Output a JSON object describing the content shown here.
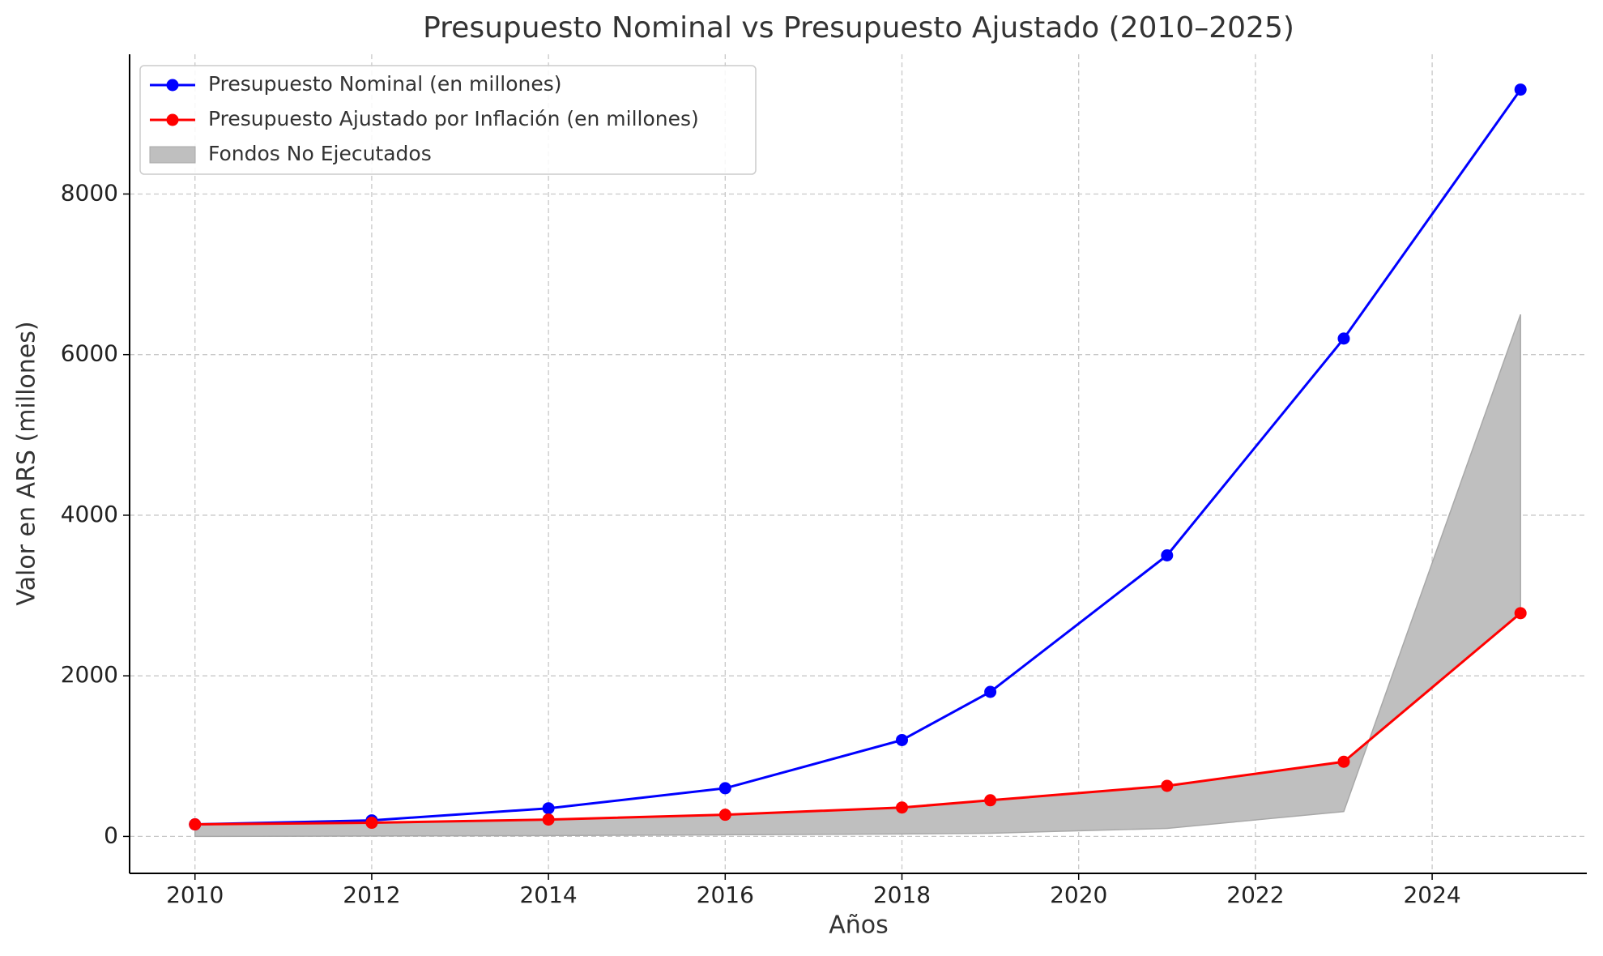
{
  "chart_data": {
    "type": "line",
    "title": "Presupuesto Nominal vs Presupuesto Ajustado (2010–2025)",
    "x_label": "Años",
    "y_label": "Valor en ARS (millones)",
    "x": [
      2010,
      2012,
      2014,
      2016,
      2018,
      2019,
      2021,
      2023,
      2025
    ],
    "series": [
      {
        "name": "Presupuesto Nominal (en millones)",
        "color": "#0000ff",
        "values": [
          150,
          200,
          350,
          600,
          1200,
          1800,
          3500,
          6200,
          9300
        ]
      },
      {
        "name": "Presupuesto Ajustado por Inflación (en millones)",
        "color": "#ff0000",
        "values": [
          150,
          170,
          210,
          270,
          360,
          450,
          630,
          930,
          2780
        ]
      },
      {
        "name": "Fondos No Ejecutados",
        "type": "fill_between",
        "color": "#bfbfbf",
        "values": [
          0,
          5,
          10,
          20,
          30,
          40,
          100,
          310,
          6500
        ]
      }
    ],
    "xlim": [
      2009.26,
      2025.75
    ],
    "xticks": [
      2010,
      2012,
      2014,
      2016,
      2018,
      2020,
      2022,
      2024
    ],
    "ylim": [
      -460,
      9740
    ],
    "yticks": [
      0,
      2000,
      4000,
      6000,
      8000
    ],
    "grid": true,
    "legend": "upper left"
  }
}
